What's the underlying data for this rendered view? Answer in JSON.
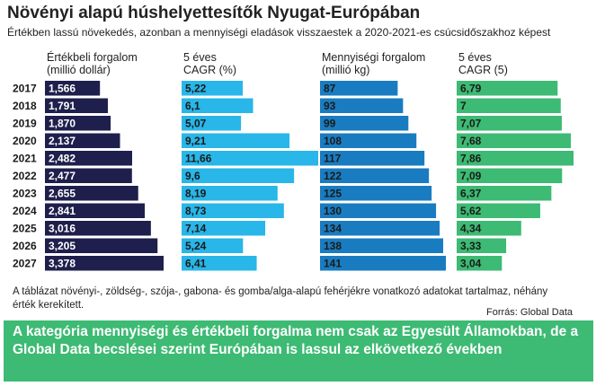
{
  "title": "Növényi alapú húshelyettesítők Nyugat-Európában",
  "subtitle": "Értékben lassú növekedés, azonban a mennyiségi eladások visszaestek a 2020-2021-es csúcsidőszakhoz képest",
  "columns": {
    "value_sales": [
      "Értékbeli forgalom",
      "(millió dollár)"
    ],
    "value_cagr": [
      "5 éves",
      "CAGR (%)"
    ],
    "volume_sales": [
      "Mennyiségi forgalom",
      "(millió kg)"
    ],
    "volume_cagr": [
      "5 éves",
      "CAGR (5)"
    ]
  },
  "note": "A táblázat növényi-, zöldség-, szója-, gabona- és gomba/alga-alapú fehérjékre vonatkozó adatokat tartalmaz, néhány érték kerekített.",
  "source": "Forrás: Global Data",
  "banner": "A kategória mennyiségi és értékbeli forgalma nem csak az Egyesült Államokban, de a Global Data becslései szerint Európában is lassul az elkövetkező években",
  "colors": {
    "value_sales": "#1f1f4d",
    "value_cagr": "#29b6e8",
    "volume_sales": "#1a7cc0",
    "volume_cagr": "#3dba73",
    "banner": "#3dba73"
  },
  "chart_data": {
    "type": "bar",
    "orientation": "horizontal",
    "categories": [
      "2017",
      "2018",
      "2019",
      "2020",
      "2021",
      "2022",
      "2023",
      "2024",
      "2025",
      "2026",
      "2027"
    ],
    "series": [
      {
        "name": "Értékbeli forgalom (millió dollár)",
        "labels": [
          "1,566",
          "1,791",
          "1,870",
          "2,137",
          "2,482",
          "2,477",
          "2,655",
          "2,841",
          "3,016",
          "3,205",
          "3,378"
        ],
        "values": [
          1566,
          1791,
          1870,
          2137,
          2482,
          2477,
          2655,
          2841,
          3016,
          3205,
          3378
        ]
      },
      {
        "name": "5 éves CAGR (%)",
        "labels": [
          "5,22",
          "6,1",
          "5,07",
          "9,21",
          "11,66",
          "9,6",
          "8,19",
          "8,73",
          "7,14",
          "5,24",
          "6,41"
        ],
        "values": [
          5.22,
          6.1,
          5.07,
          9.21,
          11.66,
          9.6,
          8.19,
          8.73,
          7.14,
          5.24,
          6.41
        ]
      },
      {
        "name": "Mennyiségi forgalom (millió kg)",
        "labels": [
          "87",
          "93",
          "99",
          "108",
          "117",
          "122",
          "125",
          "130",
          "134",
          "138",
          "141"
        ],
        "values": [
          87,
          93,
          99,
          108,
          117,
          122,
          125,
          130,
          134,
          138,
          141
        ]
      },
      {
        "name": "5 éves CAGR (5)",
        "labels": [
          "6,79",
          "7",
          "7,07",
          "7,68",
          "7,86",
          "7,09",
          "6,37",
          "5,62",
          "4,34",
          "3,33",
          "3,04"
        ],
        "values": [
          6.79,
          7,
          7.07,
          7.68,
          7.86,
          7.09,
          6.37,
          5.62,
          4.34,
          3.33,
          3.04
        ]
      }
    ]
  }
}
